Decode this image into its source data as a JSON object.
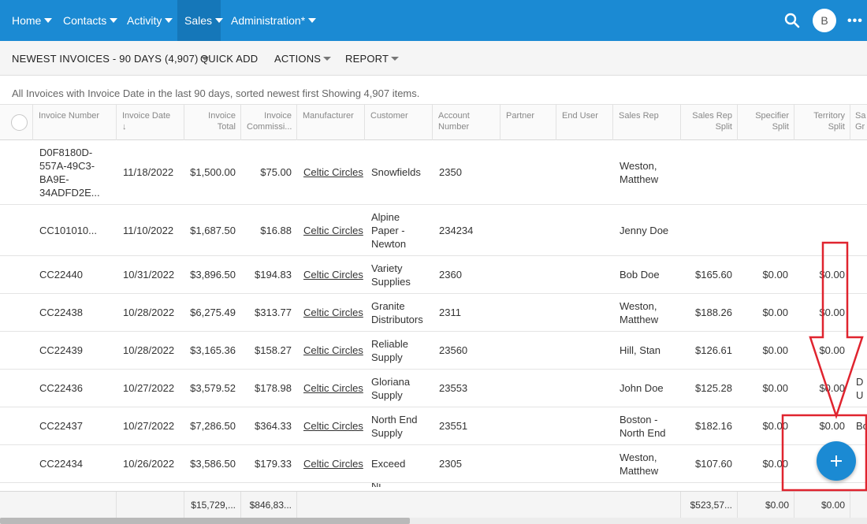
{
  "nav": {
    "items": [
      {
        "label": "Home"
      },
      {
        "label": "Contacts"
      },
      {
        "label": "Activity"
      },
      {
        "label": "Sales"
      },
      {
        "label": "Administration*"
      }
    ],
    "search_icon": "search-icon",
    "avatar_initial": "B",
    "more_icon": "more-icon",
    "bar_color": "#1b8ad3"
  },
  "toolbar": {
    "view_label": "NEWEST INVOICES - 90 DAYS (4,907)",
    "quick_add_label": "QUICK ADD",
    "actions_label": "ACTIONS",
    "report_label": "REPORT"
  },
  "description": "All Invoices with Invoice Date in the last 90 days, sorted newest first Showing 4,907 items.",
  "columns": {
    "invoice_number": "Invoice Number",
    "invoice_date": "Invoice Date",
    "sort_indicator": "↓",
    "invoice_total": "Invoice Total",
    "invoice_commission": "Invoice Commissi...",
    "manufacturer": "Manufacturer",
    "customer": "Customer",
    "account_number": "Account Number",
    "partner": "Partner",
    "end_user": "End User",
    "sales_rep": "Sales Rep",
    "sales_rep_split": "Sales Rep Split",
    "specifier_split": "Specifier Split",
    "territory_split": "Territory Split",
    "sales_group": "Sa Gr"
  },
  "rows": [
    {
      "invoice_number": "D0F8180D-557A-49C3-BA9E-34ADFD2E...",
      "invoice_date": "11/18/2022",
      "invoice_total": "$1,500.00",
      "invoice_commission": "$75.00",
      "manufacturer": "Celtic Circles",
      "customer": "Snowfields",
      "account_number": "2350",
      "partner": "",
      "end_user": "",
      "sales_rep": "Weston, Matthew",
      "sales_rep_split": "",
      "specifier_split": "",
      "territory_split": "",
      "sales_group": ""
    },
    {
      "invoice_number": "CC101010...",
      "invoice_date": "11/10/2022",
      "invoice_total": "$1,687.50",
      "invoice_commission": "$16.88",
      "manufacturer": "Celtic Circles",
      "customer": "Alpine Paper - Newton",
      "account_number": "234234",
      "partner": "",
      "end_user": "",
      "sales_rep": "Jenny Doe",
      "sales_rep_split": "",
      "specifier_split": "",
      "territory_split": "",
      "sales_group": ""
    },
    {
      "invoice_number": "CC22440",
      "invoice_date": "10/31/2022",
      "invoice_total": "$3,896.50",
      "invoice_commission": "$194.83",
      "manufacturer": "Celtic Circles",
      "customer": "Variety Supplies",
      "account_number": "2360",
      "partner": "",
      "end_user": "",
      "sales_rep": "Bob Doe",
      "sales_rep_split": "$165.60",
      "specifier_split": "$0.00",
      "territory_split": "$0.00",
      "sales_group": ""
    },
    {
      "invoice_number": "CC22438",
      "invoice_date": "10/28/2022",
      "invoice_total": "$6,275.49",
      "invoice_commission": "$313.77",
      "manufacturer": "Celtic Circles",
      "customer": "Granite Distributors",
      "account_number": "2311",
      "partner": "",
      "end_user": "",
      "sales_rep": "Weston, Matthew",
      "sales_rep_split": "$188.26",
      "specifier_split": "$0.00",
      "territory_split": "$0.00",
      "sales_group": ""
    },
    {
      "invoice_number": "CC22439",
      "invoice_date": "10/28/2022",
      "invoice_total": "$3,165.36",
      "invoice_commission": "$158.27",
      "manufacturer": "Celtic Circles",
      "customer": "Reliable Supply",
      "account_number": "23560",
      "partner": "",
      "end_user": "",
      "sales_rep": "Hill, Stan",
      "sales_rep_split": "$126.61",
      "specifier_split": "$0.00",
      "territory_split": "$0.00",
      "sales_group": ""
    },
    {
      "invoice_number": "CC22436",
      "invoice_date": "10/27/2022",
      "invoice_total": "$3,579.52",
      "invoice_commission": "$178.98",
      "manufacturer": "Celtic Circles",
      "customer": "Gloriana Supply",
      "account_number": "23553",
      "partner": "",
      "end_user": "",
      "sales_rep": "John Doe",
      "sales_rep_split": "$125.28",
      "specifier_split": "$0.00",
      "territory_split": "$0.00",
      "sales_group": "D U"
    },
    {
      "invoice_number": "CC22437",
      "invoice_date": "10/27/2022",
      "invoice_total": "$7,286.50",
      "invoice_commission": "$364.33",
      "manufacturer": "Celtic Circles",
      "customer": "North End Supply",
      "account_number": "23551",
      "partner": "",
      "end_user": "",
      "sales_rep": "Boston - North End",
      "sales_rep_split": "$182.16",
      "specifier_split": "$0.00",
      "territory_split": "$0.00",
      "sales_group": "Bo"
    },
    {
      "invoice_number": "CC22434",
      "invoice_date": "10/26/2022",
      "invoice_total": "$3,586.50",
      "invoice_commission": "$179.33",
      "manufacturer": "Celtic Circles",
      "customer": "Exceed",
      "account_number": "2305",
      "partner": "",
      "end_user": "",
      "sales_rep": "Weston, Matthew",
      "sales_rep_split": "$107.60",
      "specifier_split": "$0.00",
      "territory_split": "",
      "sales_group": ""
    }
  ],
  "partial_row_text": "Ni",
  "footer": {
    "invoice_total": "$15,729,...",
    "invoice_commission": "$846,83...",
    "sales_rep_split": "$523,57...",
    "specifier_split": "$0.00",
    "territory_split": "$0.00"
  },
  "fab": {
    "icon": "plus-icon",
    "color": "#1b8ad3"
  },
  "annotation": {
    "color": "#e0242f"
  }
}
